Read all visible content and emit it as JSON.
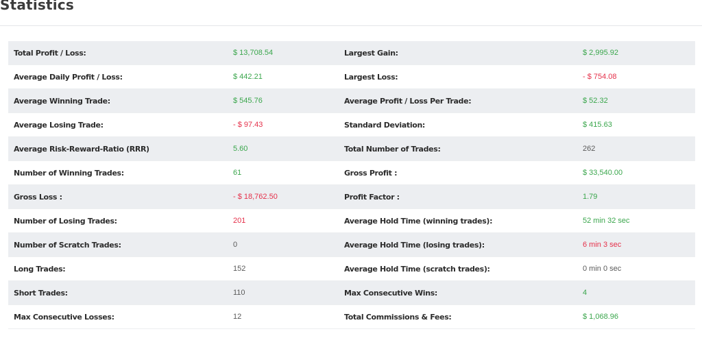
{
  "page": {
    "title": "Statistics"
  },
  "colors": {
    "positive": "#3aa64c",
    "negative": "#e5304a",
    "neutral": "#5a5a5a",
    "row_stripe": "#eceef1"
  },
  "rows": [
    {
      "left_label": "Total Profit / Loss:",
      "left_value": "$ 13,708.54",
      "left_tone": "pos",
      "right_label": "Largest Gain:",
      "right_value": "$ 2,995.92",
      "right_tone": "pos"
    },
    {
      "left_label": "Average Daily Profit / Loss:",
      "left_value": "$ 442.21",
      "left_tone": "pos",
      "right_label": "Largest Loss:",
      "right_value": "- $ 754.08",
      "right_tone": "neg"
    },
    {
      "left_label": "Average Winning Trade:",
      "left_value": "$ 545.76",
      "left_tone": "pos",
      "right_label": "Average Profit / Loss Per Trade:",
      "right_value": "$ 52.32",
      "right_tone": "pos"
    },
    {
      "left_label": "Average Losing Trade:",
      "left_value": "- $ 97.43",
      "left_tone": "neg",
      "right_label": "Standard Deviation:",
      "right_value": "$ 415.63",
      "right_tone": "pos"
    },
    {
      "left_label": "Average Risk-Reward-Ratio (RRR)",
      "left_value": "5.60",
      "left_tone": "pos",
      "right_label": "Total Number of Trades:",
      "right_value": "262",
      "right_tone": "neu"
    },
    {
      "left_label": "Number of Winning Trades:",
      "left_value": "61",
      "left_tone": "pos",
      "right_label": "Gross Profit :",
      "right_value": "$ 33,540.00",
      "right_tone": "pos"
    },
    {
      "left_label": "Gross Loss :",
      "left_value": "- $ 18,762.50",
      "left_tone": "neg",
      "right_label": "Profit Factor :",
      "right_value": "1.79",
      "right_tone": "pos"
    },
    {
      "left_label": "Number of Losing Trades:",
      "left_value": "201",
      "left_tone": "neg",
      "right_label": "Average Hold Time (winning trades):",
      "right_value": "52 min 32 sec",
      "right_tone": "pos"
    },
    {
      "left_label": "Number of Scratch Trades:",
      "left_value": "0",
      "left_tone": "neu",
      "right_label": "Average Hold Time (losing trades):",
      "right_value": "6 min 3 sec",
      "right_tone": "neg"
    },
    {
      "left_label": "Long Trades:",
      "left_value": "152",
      "left_tone": "neu",
      "right_label": "Average Hold Time (scratch trades):",
      "right_value": "0 min 0 sec",
      "right_tone": "neu"
    },
    {
      "left_label": "Short Trades:",
      "left_value": "110",
      "left_tone": "neu",
      "right_label": "Max Consecutive Wins:",
      "right_value": "4",
      "right_tone": "pos"
    },
    {
      "left_label": "Max Consecutive Losses:",
      "left_value": "12",
      "left_tone": "neu",
      "right_label": "Total Commissions & Fees:",
      "right_value": "$ 1,068.96",
      "right_tone": "pos"
    }
  ]
}
